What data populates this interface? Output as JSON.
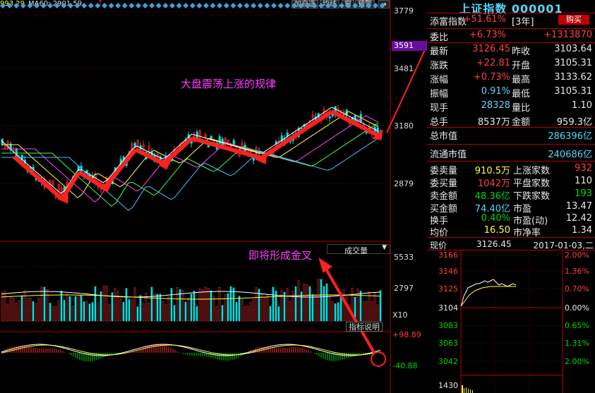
{
  "toolbar": {
    "ma30_text": "993.29",
    "ma60_text": "MA60: 2901.59",
    "btn_add_fav": "加自选",
    "btn_avg_line": "均线",
    "btn_window": "窗",
    "btn_warning": "预警"
  },
  "main_chart": {
    "price_labels": [
      "3779",
      "3481",
      "3180",
      "2879"
    ],
    "current_price_tag": "3591",
    "annotation": "大盘震荡上涨的规律",
    "colors": {
      "up": "#ff3030",
      "down": "#00e0e0",
      "arrow": "#ff3030",
      "annotation": "#ff40ff"
    }
  },
  "volume_chart": {
    "selector_label": "成交量",
    "labels": [
      "5533",
      "2797"
    ],
    "multiplier": "X10",
    "annotation": "即将形成金叉",
    "btn_indicator": "指标说明"
  },
  "macd_chart": {
    "labels": [
      "+98.89",
      "-40.88"
    ]
  },
  "quote": {
    "title": "上证指数 000001",
    "buy_label": "购买",
    "rows": [
      {
        "l1": "添富指数",
        "v1": "+51.61%",
        "l2": "[3年]",
        "v2": ""
      },
      {
        "l1": "委比",
        "v1": "+6.73%",
        "l2": "",
        "v2": "+1313870"
      },
      {
        "l1": "最新",
        "v1": "3126.45",
        "l2": "昨收",
        "v2": "3103.64"
      },
      {
        "l1": "涨跌",
        "v1": "+22.81",
        "l2": "开盘",
        "v2": "3105.31"
      },
      {
        "l1": "涨幅",
        "v1": "+0.73%",
        "l2": "最高",
        "v2": "3133.62"
      },
      {
        "l1": "振幅",
        "v1": "0.91%",
        "l2": "最低",
        "v2": "3105.31"
      },
      {
        "l1": "现手",
        "v1": "28328",
        "l2": "量比",
        "v2": "1.10"
      },
      {
        "l1": "总手",
        "v1": "8537万",
        "l2": "金额",
        "v2": "959.3亿"
      }
    ],
    "market_cap_label": "总市值",
    "market_cap": "286396亿",
    "float_cap_label": "流通市值",
    "float_cap": "240686亿",
    "lower_rows": [
      {
        "l1": "委卖量",
        "v1": "910.5万",
        "l2": "上涨家数",
        "v2": "932"
      },
      {
        "l1": "委买量",
        "v1": "1042万",
        "l2": "平盘家数",
        "v2": "110"
      },
      {
        "l1": "卖金额",
        "v1": "48.36亿",
        "l2": "下跌家数",
        "v2": "193"
      },
      {
        "l1": "买金额",
        "v1": "74.40亿",
        "l2": "市盈",
        "v2": "13.47"
      },
      {
        "l1": "换手",
        "v1": "0.40%",
        "l2": "市盈(动)",
        "v2": "12.42"
      },
      {
        "l1": "均价",
        "v1": "16.50",
        "l2": "市净率",
        "v2": "1.34"
      }
    ]
  },
  "intraday": {
    "header_label": "现价",
    "header_price": "3126.45",
    "header_date": "2017-01-03,二",
    "left_labels": [
      "3166",
      "3146",
      "3125",
      "3104",
      "3083",
      "3063",
      "3042",
      "1430"
    ],
    "right_labels": [
      "2.00%",
      "1.36%",
      "0.70%",
      "0.00%",
      "0.65%",
      "1.31%",
      "2.00%"
    ]
  }
}
